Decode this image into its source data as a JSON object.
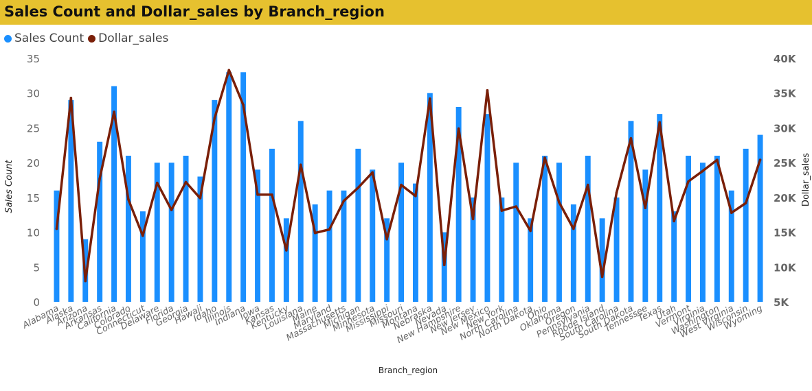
{
  "chart_data": {
    "type": "bar",
    "title": "Sales Count and Dollar_sales by Branch_region",
    "xlabel": "Branch_region",
    "ylabel": "Sales Count",
    "y2label": "Dollar_sales",
    "ylim": [
      0,
      35
    ],
    "y2lim": [
      5000,
      40000
    ],
    "yticks": [
      "0",
      "5",
      "10",
      "15",
      "20",
      "25",
      "30",
      "35"
    ],
    "y2ticks": [
      "5K",
      "10K",
      "15K",
      "20K",
      "25K",
      "30K",
      "35K",
      "40K"
    ],
    "grid": false,
    "legend_position": "top-left",
    "categories": [
      "Alabama",
      "Alaska",
      "Arizona",
      "Arkansas",
      "California",
      "Colorado",
      "Connecticut",
      "Delaware",
      "Florida",
      "Georgia",
      "Hawaii",
      "Idaho",
      "Illinois",
      "Indiana",
      "Iowa",
      "Kansas",
      "Kentucky",
      "Louisiana",
      "Maine",
      "Maryland",
      "Massachusetts",
      "Michigan",
      "Minnesota",
      "Mississippi",
      "Missouri",
      "Montana",
      "Nebraska",
      "Nevada",
      "New Hampshire",
      "New Jersey",
      "New Mexico",
      "New York",
      "North Carolina",
      "North Dakota",
      "Ohio",
      "Oklahoma",
      "Oregon",
      "Pennsylvania",
      "Rhode Island",
      "South Carolina",
      "South Dakota",
      "Tennessee",
      "Texas",
      "Utah",
      "Vermont",
      "Virginia",
      "Washington",
      "West Virginia",
      "Wisconsin",
      "Wyoming"
    ],
    "series": [
      {
        "name": "Sales Count",
        "type": "bar",
        "axis": "left",
        "color": "#1a8fff",
        "values": [
          16,
          29,
          9,
          23,
          31,
          21,
          13,
          20,
          20,
          21,
          18,
          29,
          33,
          33,
          19,
          22,
          12,
          26,
          14,
          16,
          16,
          22,
          19,
          12,
          20,
          17,
          30,
          10,
          28,
          15,
          27,
          15,
          20,
          12,
          21,
          20,
          14,
          21,
          12,
          15,
          26,
          19,
          27,
          13,
          21,
          20,
          21,
          16,
          22,
          24
        ]
      },
      {
        "name": "Dollar_sales",
        "type": "line",
        "axis": "right",
        "color": "#7a1f08",
        "values": [
          15500,
          34300,
          8000,
          22700,
          32300,
          19700,
          14500,
          22100,
          18200,
          22200,
          19900,
          31400,
          38300,
          33300,
          20400,
          20400,
          12400,
          24700,
          14900,
          15400,
          19500,
          21400,
          23600,
          14000,
          21800,
          20200,
          34200,
          10300,
          29900,
          16900,
          35400,
          18100,
          18700,
          15200,
          25700,
          19300,
          15500,
          21800,
          8600,
          20700,
          28500,
          18500,
          30800,
          16600,
          22300,
          23800,
          25400,
          17800,
          19200,
          25400
        ]
      }
    ]
  }
}
